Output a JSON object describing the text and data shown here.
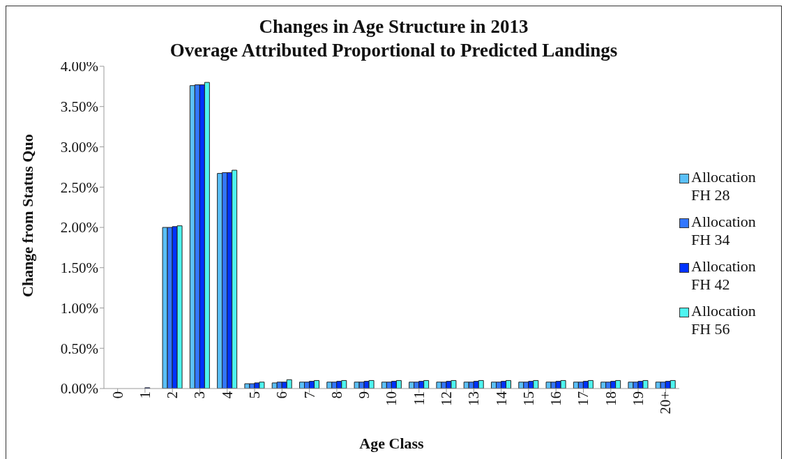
{
  "chart_data": {
    "type": "bar",
    "title": "Changes in Age Structure in 2013\nOverage Attributed Proportional to Predicted Landings",
    "xlabel": "Age Class",
    "ylabel": "Change from Status Quo",
    "categories": [
      "0",
      "1",
      "2",
      "3",
      "4",
      "5",
      "6",
      "7",
      "8",
      "9",
      "10",
      "11",
      "12",
      "13",
      "14",
      "15",
      "16",
      "17",
      "18",
      "19",
      "20+"
    ],
    "series": [
      {
        "name": "Allocation FH 28",
        "color": "#5bc0f8",
        "values": [
          0,
          null,
          2.0,
          3.76,
          2.67,
          0.06,
          0.07,
          0.08,
          0.08,
          0.08,
          0.08,
          0.08,
          0.08,
          0.08,
          0.08,
          0.08,
          0.08,
          0.08,
          0.08,
          0.08,
          0.08
        ]
      },
      {
        "name": "Allocation FH 34",
        "color": "#3377ff",
        "values": [
          0,
          null,
          2.0,
          3.77,
          2.68,
          0.06,
          0.08,
          0.08,
          0.08,
          0.08,
          0.08,
          0.08,
          0.08,
          0.08,
          0.08,
          0.08,
          0.08,
          0.08,
          0.08,
          0.08,
          0.08
        ]
      },
      {
        "name": "Allocation FH 42",
        "color": "#0033ff",
        "values": [
          0,
          0.01,
          2.01,
          3.77,
          2.68,
          0.07,
          0.08,
          0.09,
          0.09,
          0.09,
          0.09,
          0.09,
          0.09,
          0.09,
          0.09,
          0.09,
          0.09,
          0.09,
          0.09,
          0.09,
          0.09
        ]
      },
      {
        "name": "Allocation FH 56",
        "color": "#4ef5f0",
        "values": [
          0,
          null,
          2.02,
          3.8,
          2.71,
          0.08,
          0.11,
          0.1,
          0.1,
          0.1,
          0.1,
          0.1,
          0.1,
          0.1,
          0.1,
          0.1,
          0.1,
          0.1,
          0.1,
          0.1,
          0.1
        ]
      }
    ],
    "ylim": [
      0,
      4
    ],
    "yticks": [
      {
        "value": 0,
        "label": "0.00%"
      },
      {
        "value": 0.5,
        "label": "0.50%"
      },
      {
        "value": 1,
        "label": "1.00%"
      },
      {
        "value": 1.5,
        "label": "1.50%"
      },
      {
        "value": 2,
        "label": "2.00%"
      },
      {
        "value": 2.5,
        "label": "2.50%"
      },
      {
        "value": 3,
        "label": "3.00%"
      },
      {
        "value": 3.5,
        "label": "3.50%"
      },
      {
        "value": 4,
        "label": "4.00%"
      }
    ],
    "grid": false,
    "legend": "right"
  }
}
